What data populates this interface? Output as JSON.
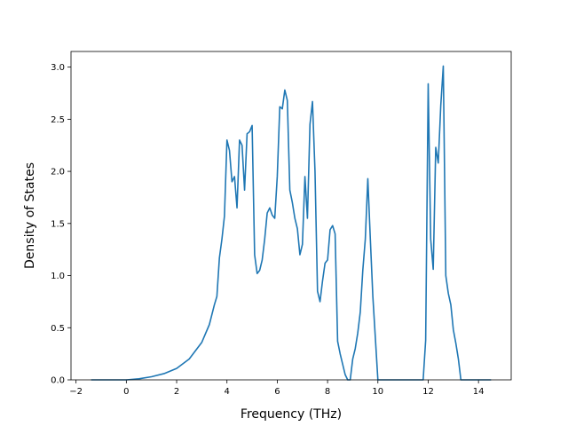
{
  "chart_data": {
    "type": "line",
    "title": "",
    "xlabel": "Frequency (THz)",
    "ylabel": "Density of States",
    "xlim": [
      -2.2,
      15.3
    ],
    "ylim": [
      0,
      3.15
    ],
    "xticks": [
      -2,
      0,
      2,
      4,
      6,
      8,
      10,
      12,
      14
    ],
    "yticks": [
      0.0,
      0.5,
      1.0,
      1.5,
      2.0,
      2.5,
      3.0
    ],
    "xtick_labels": [
      "−2",
      "0",
      "2",
      "4",
      "6",
      "8",
      "10",
      "12",
      "14"
    ],
    "ytick_labels": [
      "0.0",
      "0.5",
      "1.0",
      "1.5",
      "2.0",
      "2.5",
      "3.0"
    ],
    "grid": false,
    "legend": "none",
    "line_color": "#1f77b4",
    "series": [
      {
        "x": [
          -1.4,
          0.0,
          0.5,
          1.0,
          1.5,
          2.0,
          2.5,
          3.0,
          3.3,
          3.5,
          3.6,
          3.7,
          3.8,
          3.9,
          4.0,
          4.1,
          4.2,
          4.3,
          4.4,
          4.5,
          4.6,
          4.7,
          4.8,
          4.9,
          5.0,
          5.1,
          5.2,
          5.3,
          5.4,
          5.5,
          5.6,
          5.7,
          5.8,
          5.9,
          6.0,
          6.1,
          6.2,
          6.3,
          6.4,
          6.5,
          6.6,
          6.7,
          6.8,
          6.9,
          7.0,
          7.1,
          7.2,
          7.3,
          7.4,
          7.5,
          7.6,
          7.7,
          7.8,
          7.9,
          8.0,
          8.1,
          8.2,
          8.3,
          8.4,
          8.5,
          8.6,
          8.7,
          8.8,
          8.9,
          9.0,
          9.1,
          9.2,
          9.3,
          9.4,
          9.5,
          9.6,
          9.7,
          9.8,
          9.9,
          10.0,
          10.1,
          10.2,
          10.3,
          10.4,
          11.8,
          11.9,
          12.0,
          12.1,
          12.2,
          12.3,
          12.4,
          12.5,
          12.6,
          12.7,
          12.8,
          12.9,
          13.0,
          13.1,
          13.2,
          13.3,
          14.5
        ],
        "y": [
          0.0,
          0.0,
          0.01,
          0.03,
          0.06,
          0.11,
          0.2,
          0.36,
          0.53,
          0.72,
          0.8,
          1.17,
          1.35,
          1.57,
          2.3,
          2.2,
          1.9,
          1.95,
          1.65,
          2.3,
          2.25,
          1.82,
          2.36,
          2.38,
          2.44,
          1.2,
          1.02,
          1.05,
          1.15,
          1.35,
          1.6,
          1.65,
          1.58,
          1.55,
          1.95,
          2.62,
          2.6,
          2.78,
          2.68,
          1.82,
          1.7,
          1.55,
          1.45,
          1.2,
          1.3,
          1.95,
          1.55,
          2.45,
          2.67,
          2.0,
          0.85,
          0.75,
          0.95,
          1.12,
          1.15,
          1.44,
          1.48,
          1.4,
          0.37,
          0.25,
          0.15,
          0.05,
          0.0,
          0.0,
          0.2,
          0.3,
          0.45,
          0.65,
          1.05,
          1.35,
          1.93,
          1.35,
          0.8,
          0.4,
          0.0,
          0.0,
          0.0,
          0.0,
          0.0,
          0.0,
          0.38,
          2.84,
          1.35,
          1.06,
          2.23,
          2.08,
          2.63,
          3.01,
          1.0,
          0.83,
          0.72,
          0.48,
          0.35,
          0.2,
          0.0,
          0.0
        ]
      }
    ]
  }
}
